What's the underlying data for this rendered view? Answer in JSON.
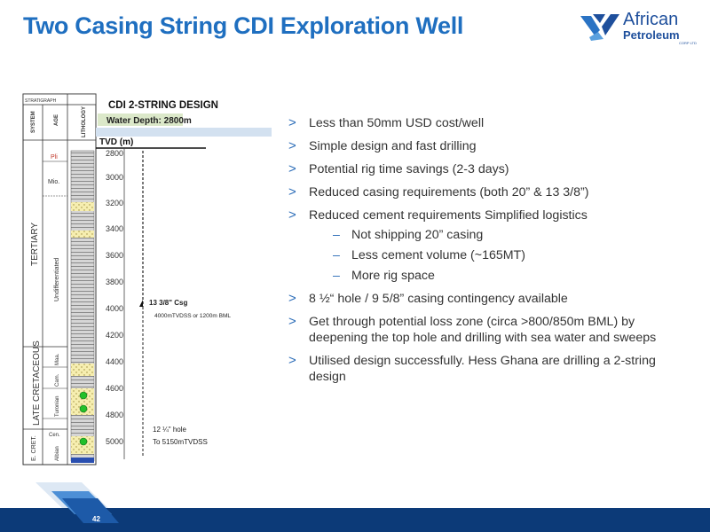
{
  "slide": {
    "title": "Two Casing String CDI Exploration Well",
    "page_number": "42",
    "colors": {
      "title": "#1f6fc0",
      "footer": "#0c3a78",
      "bullet_marker": "#2b6cb8"
    }
  },
  "logo": {
    "line1": "African",
    "line2": "Petroleum",
    "line3": "CORP LTD"
  },
  "diagram": {
    "header": {
      "col1": "STRATIGRAPH",
      "system": "SYSTEM",
      "age": "AGE",
      "lithology": "LITHOLOGY"
    },
    "title": "CDI 2-STRING DESIGN",
    "water_depth": "Water Depth: 2800m",
    "tvd_label": "TVD (m)",
    "depth_ticks": [
      "2800",
      "3000",
      "3200",
      "3400",
      "3600",
      "3800",
      "4000",
      "4200",
      "4400",
      "4600",
      "4800",
      "5000"
    ],
    "systems": [
      "TERTIARY",
      "LATE CRETACEOUS",
      "E. CRET."
    ],
    "ages": [
      "Pli",
      "Mio.",
      "Undifferentiated",
      "Maa.",
      "Cam.",
      "Turonian",
      "Cen.",
      "Albian"
    ],
    "casing_label": "13 3/8\" Csg",
    "casing_note": "4000mTVDSS or 1200m BML",
    "hole_label": "12 ¼\" hole",
    "hole_note": "To 5150mTVDSS"
  },
  "bullets": [
    {
      "text": "Less than 50mm USD cost/well"
    },
    {
      "text": "Simple design and fast drilling"
    },
    {
      "text": "Potential rig time savings (2-3 days)"
    },
    {
      "text": "Reduced casing requirements (both 20” & 13 3/8”)"
    },
    {
      "text": "Reduced cement requirements Simplified logistics",
      "sub": [
        "Not shipping 20” casing",
        "Less cement volume (~165MT)",
        "More rig space"
      ]
    },
    {
      "text": "8 ½“ hole / 9 5/8” casing contingency available"
    },
    {
      "text": "Get through potential loss zone (circa >800/850m BML) by deepening the top hole and drilling with sea water and sweeps"
    },
    {
      "text": "Utilised design successfully.  Hess Ghana are drilling a 2-string design"
    }
  ],
  "bullet_marker": ">",
  "sub_marker": "–"
}
